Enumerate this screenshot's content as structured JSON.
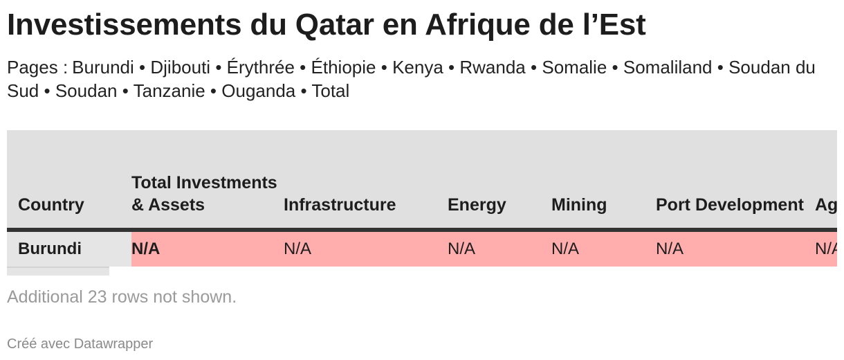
{
  "header": {
    "title": "Investissements du Qatar en Afrique de l’Est",
    "pages_prefix": "Pages :",
    "pages": [
      "Burundi",
      "Djibouti",
      "Érythrée",
      "Éthiopie",
      "Kenya",
      "Rwanda",
      "Somalie",
      "Somaliland",
      "Soudan du Sud",
      "Soudan",
      "Tanzanie",
      "Ouganda",
      "Total"
    ],
    "separator": "•"
  },
  "table": {
    "columns": [
      "Country",
      "Total Investments & Assets",
      "Infrastructure",
      "Energy",
      "Mining",
      "Port Development",
      "Agriculture"
    ],
    "rows": [
      {
        "country": "Burundi",
        "total": "N/A",
        "infrastructure": "N/A",
        "energy": "N/A",
        "mining": "N/A",
        "port": "N/A",
        "agriculture": "N/A"
      }
    ],
    "highlight_color": "#ffadad",
    "header_bg": "#e0e0e0"
  },
  "note": "Additional 23 rows not shown.",
  "footer": "Créé avec Datawrapper"
}
